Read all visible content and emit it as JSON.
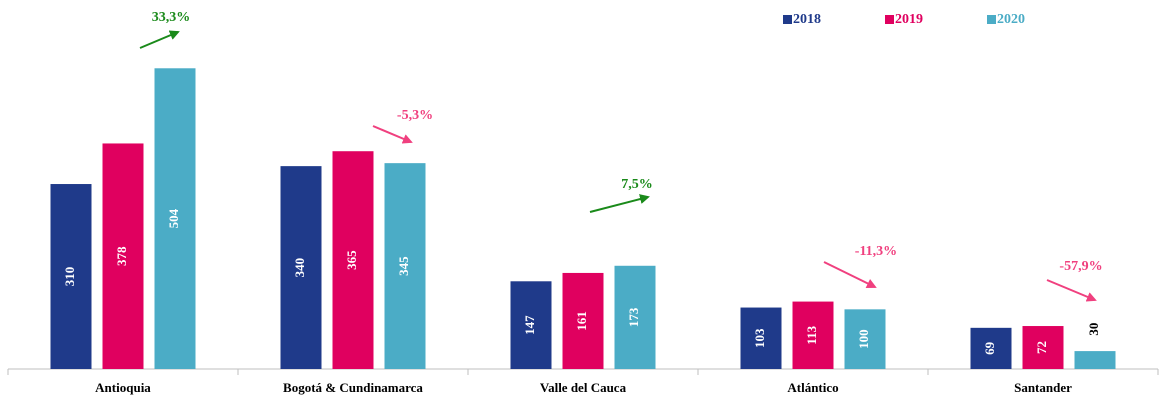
{
  "chart_data": {
    "type": "bar",
    "categories": [
      "Antioquia",
      "Bogotá & Cundinamarca",
      "Valle del Cauca",
      "Atlántico",
      "Santander"
    ],
    "series": [
      {
        "name": "2018",
        "color": "#1f3a8a",
        "values": [
          310,
          340,
          147,
          103,
          69
        ]
      },
      {
        "name": "2019",
        "color": "#e0005f",
        "values": [
          378,
          365,
          161,
          113,
          72
        ]
      },
      {
        "name": "2020",
        "color": "#4bacc6",
        "values": [
          504,
          345,
          173,
          100,
          30
        ]
      }
    ],
    "ylim": [
      0,
      600
    ],
    "annotations": [
      {
        "text": "33,3%",
        "color": "#1a8a1a"
      },
      {
        "text": "-5,3%",
        "color": "#f0407f"
      },
      {
        "text": "7,5%",
        "color": "#1a8a1a"
      },
      {
        "text": "-11,3%",
        "color": "#f0407f"
      },
      {
        "text": "-57,9%",
        "color": "#f0407f"
      }
    ],
    "legend": "top-right"
  }
}
